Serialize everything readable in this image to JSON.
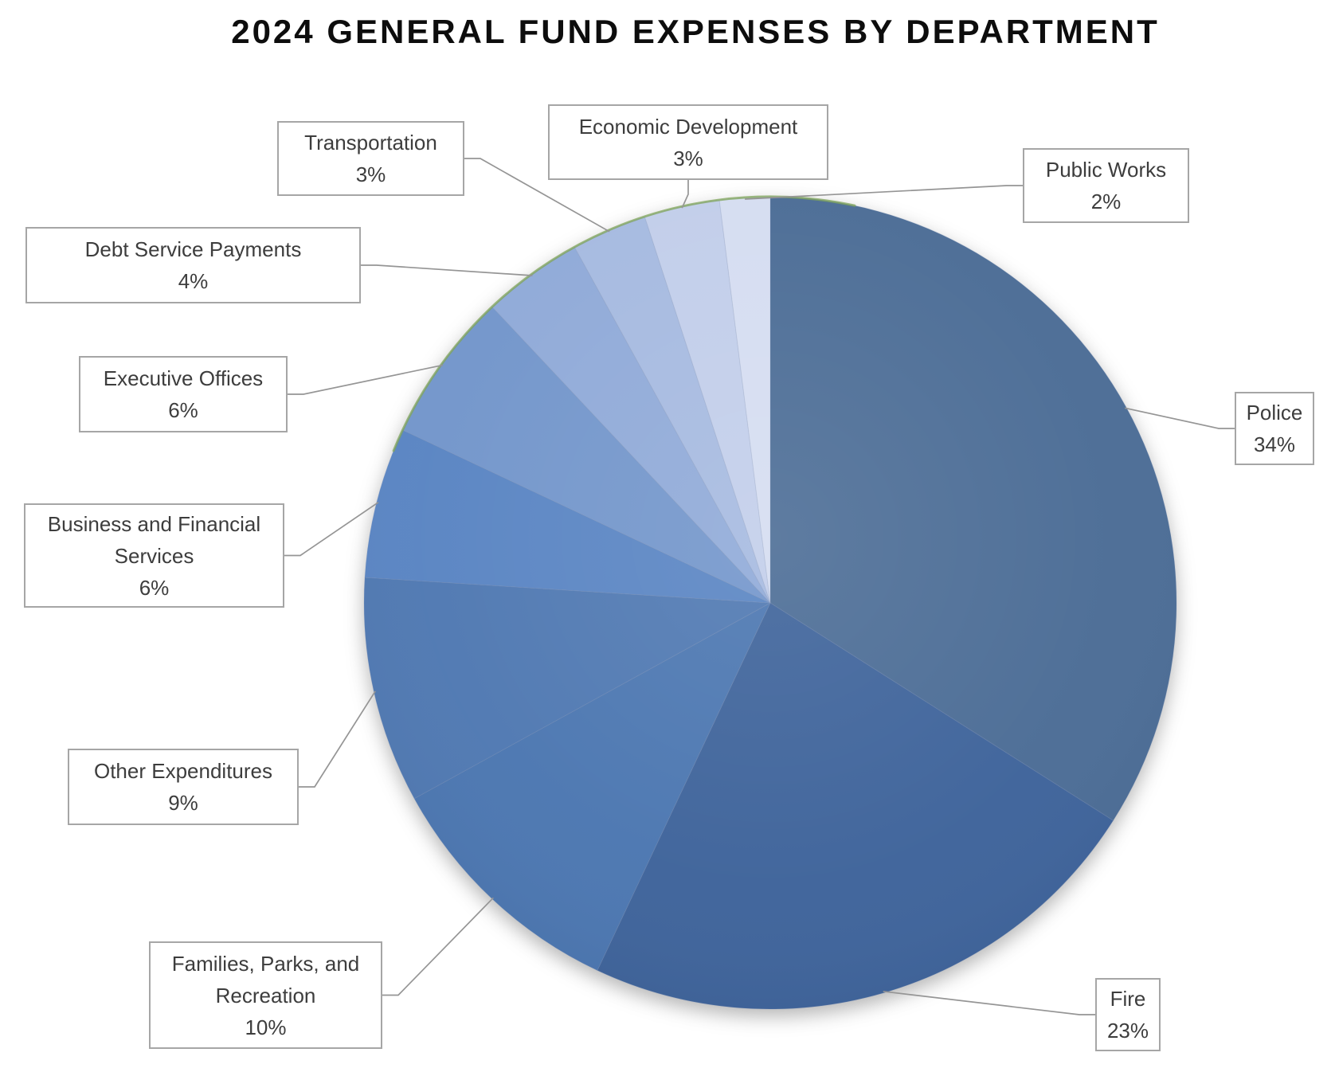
{
  "chart_data": {
    "type": "pie",
    "title": "2024 GENERAL FUND EXPENSES BY DEPARTMENT",
    "start_angle_deg": 0,
    "direction": "clockwise",
    "legend_position": "none",
    "label_style": "callout-boxes-with-leader-lines",
    "rim_highlight_color": "#7fa45a",
    "leader_line_color": "#959595",
    "label_border_color": "#a6a6a6",
    "slices": [
      {
        "label": "Police",
        "value": 34,
        "pct": "34%",
        "color": "#4c6d96"
      },
      {
        "label": "Fire",
        "value": 23,
        "pct": "23%",
        "color": "#3f649b"
      },
      {
        "label": "Families, Parks, and Recreation",
        "value": 10,
        "pct": "10%",
        "color": "#4c77b1"
      },
      {
        "label": "Other Expenditures",
        "value": 9,
        "pct": "9%",
        "color": "#5079b2"
      },
      {
        "label": "Business and Financial Services",
        "value": 6,
        "pct": "6%",
        "color": "#5a85c3"
      },
      {
        "label": "Executive Offices",
        "value": 6,
        "pct": "6%",
        "color": "#7396cb"
      },
      {
        "label": "Debt Service Payments",
        "value": 4,
        "pct": "4%",
        "color": "#90aad8"
      },
      {
        "label": "Transportation",
        "value": 3,
        "pct": "3%",
        "color": "#a6bae0"
      },
      {
        "label": "Economic Development",
        "value": 3,
        "pct": "3%",
        "color": "#c2ceea"
      },
      {
        "label": "Public Works",
        "value": 2,
        "pct": "2%",
        "color": "#d5ddf1"
      }
    ]
  }
}
